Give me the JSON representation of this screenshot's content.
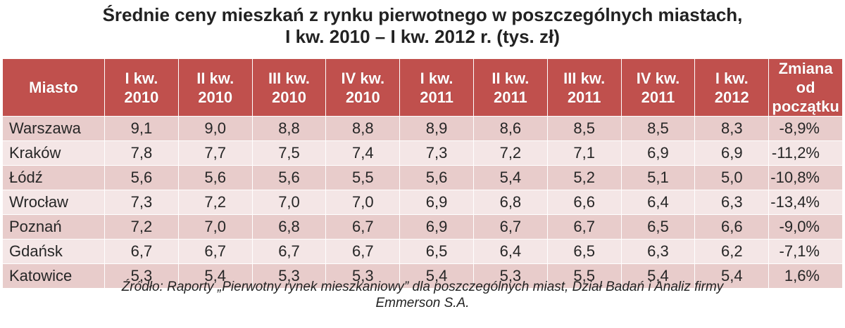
{
  "chart_data": {
    "type": "table",
    "title_lines": [
      "Średnie ceny mieszkań z rynku pierwotnego w poszczególnych miastach,",
      "I kw. 2010 – I kw. 2012 r. (tys. zł)"
    ],
    "columns": [
      [
        "Miasto"
      ],
      [
        "I kw.",
        "2010"
      ],
      [
        "II kw.",
        "2010"
      ],
      [
        "III kw.",
        "2010"
      ],
      [
        "IV kw.",
        "2010"
      ],
      [
        "I kw.",
        "2011"
      ],
      [
        "II kw.",
        "2011"
      ],
      [
        "III kw.",
        "2011"
      ],
      [
        "IV kw.",
        "2011"
      ],
      [
        "I kw.",
        "2012"
      ],
      [
        "Zmiana od",
        "początku"
      ]
    ],
    "rows": [
      [
        "Warszawa",
        "9,1",
        "9,0",
        "8,8",
        "8,8",
        "8,9",
        "8,6",
        "8,5",
        "8,5",
        "8,3",
        "-8,9%"
      ],
      [
        "Kraków",
        "7,8",
        "7,7",
        "7,5",
        "7,4",
        "7,3",
        "7,2",
        "7,1",
        "6,9",
        "6,9",
        "-11,2%"
      ],
      [
        "Łódź",
        "5,6",
        "5,6",
        "5,6",
        "5,5",
        "5,6",
        "5,4",
        "5,2",
        "5,1",
        "5,0",
        "-10,8%"
      ],
      [
        "Wrocław",
        "7,3",
        "7,2",
        "7,0",
        "7,0",
        "6,9",
        "6,8",
        "6,6",
        "6,4",
        "6,3",
        "-13,4%"
      ],
      [
        "Poznań",
        "7,2",
        "7,0",
        "6,8",
        "6,7",
        "6,9",
        "6,7",
        "6,7",
        "6,5",
        "6,6",
        "-9,0%"
      ],
      [
        "Gdańsk",
        "6,7",
        "6,7",
        "6,7",
        "6,7",
        "6,5",
        "6,4",
        "6,5",
        "6,3",
        "6,2",
        "-7,1%"
      ],
      [
        "Katowice",
        "5,3",
        "5,4",
        "5,3",
        "5,3",
        "5,4",
        "5,3",
        "5,5",
        "5,4",
        "5,4",
        "1,6%"
      ]
    ],
    "source_lines": [
      "Źródło: Raporty „Pierwotny rynek mieszkaniowy” dla poszczególnych miast, Dział Badań i Analiz firmy",
      "Emmerson S.A."
    ]
  },
  "colors": {
    "header_bg": "#c0504d",
    "header_text": "#ffffff",
    "row_odd": "#e8cccb",
    "row_even": "#f4e6e6"
  }
}
